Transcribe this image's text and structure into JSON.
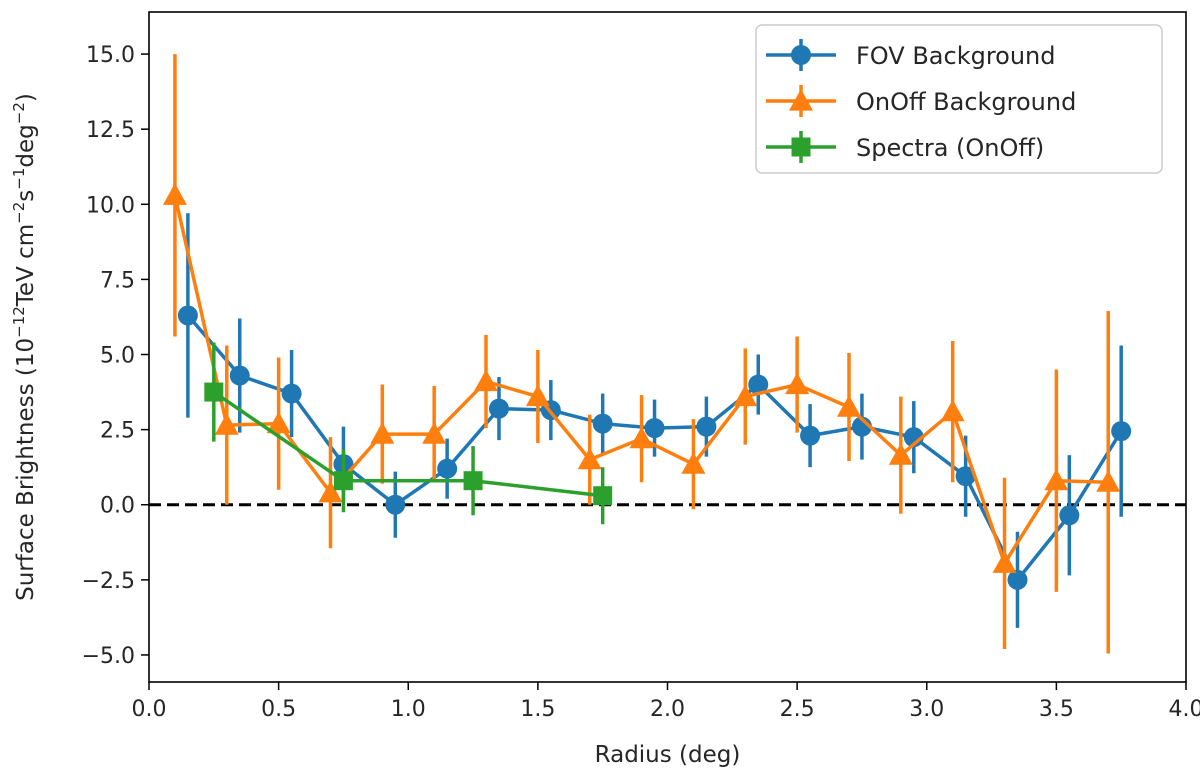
{
  "chart_data": {
    "type": "line",
    "title": "",
    "xlabel": "Radius (deg)",
    "ylabel": {
      "text": "Surface Brightness (10",
      "exp1": "−12",
      "text2": "TeV cm",
      "exp2": "−2",
      "text3": "s",
      "exp3": "−1",
      "text4": "deg",
      "exp4": "−2",
      "text5": ")"
    },
    "xlim": [
      0.0,
      4.0
    ],
    "ylim": [
      -5.9,
      16.4
    ],
    "xticks": [
      "0.0",
      "0.5",
      "1.0",
      "1.5",
      "2.0",
      "2.5",
      "3.0",
      "3.5",
      "4.0"
    ],
    "xtick_values": [
      0.0,
      0.5,
      1.0,
      1.5,
      2.0,
      2.5,
      3.0,
      3.5,
      4.0
    ],
    "yticks": [
      "−5.0",
      "−2.5",
      "0.0",
      "2.5",
      "5.0",
      "7.5",
      "10.0",
      "12.5",
      "15.0"
    ],
    "ytick_values": [
      -5.0,
      -2.5,
      0.0,
      2.5,
      5.0,
      7.5,
      10.0,
      12.5,
      15.0
    ],
    "reference_line": {
      "y": 0.0,
      "style": "dashed",
      "color": "#000000"
    },
    "legend_position": "upper-right",
    "series": [
      {
        "name": "FOV Background",
        "color": "#1f77b4",
        "marker": "circle",
        "x": [
          0.15,
          0.35,
          0.55,
          0.75,
          0.95,
          1.15,
          1.35,
          1.55,
          1.75,
          1.95,
          2.15,
          2.35,
          2.55,
          2.75,
          2.95,
          3.15,
          3.35,
          3.55,
          3.75
        ],
        "y": [
          6.3,
          4.3,
          3.7,
          1.35,
          0.0,
          1.2,
          3.2,
          3.15,
          2.7,
          2.55,
          2.6,
          4.0,
          2.3,
          2.6,
          2.25,
          0.95,
          -2.5,
          -0.35,
          2.45
        ],
        "err": [
          3.4,
          1.9,
          1.45,
          1.25,
          1.1,
          1.0,
          1.05,
          1.0,
          1.0,
          0.95,
          1.0,
          1.0,
          1.05,
          1.1,
          1.2,
          1.35,
          1.6,
          2.0,
          2.85
        ]
      },
      {
        "name": "OnOff Background",
        "color": "#ff7f0e",
        "marker": "triangle",
        "x": [
          0.1,
          0.3,
          0.5,
          0.7,
          0.9,
          1.1,
          1.3,
          1.5,
          1.7,
          1.9,
          2.1,
          2.3,
          2.5,
          2.7,
          2.9,
          3.1,
          3.3,
          3.5,
          3.7
        ],
        "y": [
          10.3,
          2.65,
          2.7,
          0.4,
          2.35,
          2.35,
          4.1,
          3.6,
          1.5,
          2.2,
          1.35,
          3.6,
          4.0,
          3.25,
          1.65,
          3.1,
          -1.95,
          0.8,
          0.75
        ],
        "err": [
          4.7,
          2.65,
          2.2,
          1.85,
          1.65,
          1.6,
          1.55,
          1.55,
          1.5,
          1.45,
          1.5,
          1.6,
          1.6,
          1.8,
          1.95,
          2.35,
          2.85,
          3.7,
          5.7
        ]
      },
      {
        "name": "Spectra (OnOff)",
        "color": "#2ca02c",
        "marker": "square",
        "x": [
          0.25,
          0.75,
          1.25,
          1.75
        ],
        "y": [
          3.75,
          0.8,
          0.8,
          0.3
        ],
        "err": [
          1.65,
          1.05,
          1.15,
          0.95
        ]
      }
    ]
  }
}
